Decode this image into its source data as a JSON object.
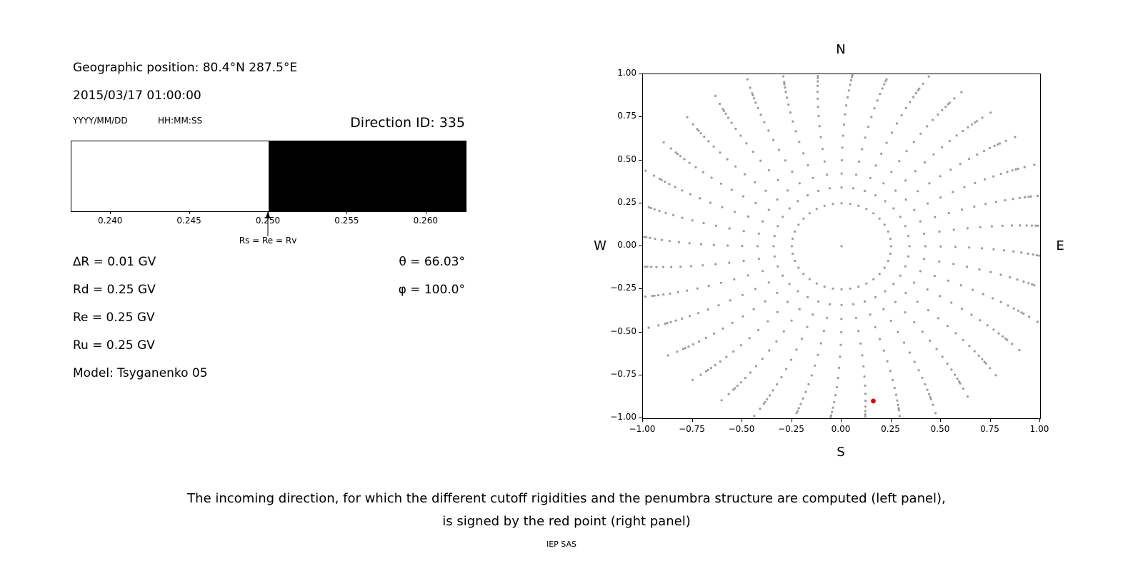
{
  "left_panel": {
    "geo_position": "Geographic position: 80.4°N 287.5°E",
    "datetime": "2015/03/17 01:00:00",
    "date_format_label": "YYYY/MM/DD",
    "time_format_label": "HH:MM:SS",
    "direction_id_label": "Direction ID: 335",
    "params": {
      "delta_r": "∆R = 0.01 GV",
      "rd": "Rd = 0.25 GV",
      "re": "Re = 0.25 GV",
      "ru": "Ru = 0.25 GV",
      "model": "Model: Tsyganenko 05",
      "theta": "θ = 66.03°",
      "phi": "φ = 100.0°"
    }
  },
  "right_panel": {
    "compass": {
      "north": "N",
      "south": "S",
      "east": "E",
      "west": "W"
    }
  },
  "caption": {
    "line1": "The incoming direction, for which the different cutoff rigidities and the penumbra structure are computed (left panel),",
    "line2": "is signed by the red point (right panel)",
    "credit": "IEP SAS"
  },
  "chart_data": [
    {
      "type": "bar",
      "name": "penumbra-structure",
      "x_range": [
        0.2375,
        0.2625
      ],
      "x_tick_values": [
        0.24,
        0.245,
        0.25,
        0.255,
        0.26
      ],
      "x_tick_labels": [
        "0.240",
        "0.245",
        "0.250",
        "0.255",
        "0.260"
      ],
      "segments": [
        {
          "from": 0.2375,
          "to": 0.25,
          "state": "allowed",
          "color": "#ffffff"
        },
        {
          "from": 0.25,
          "to": 0.2625,
          "state": "forbidden",
          "color": "#000000"
        }
      ],
      "annotation": {
        "x": 0.25,
        "label": "Rs = Re = Rv"
      }
    },
    {
      "type": "scatter",
      "name": "incoming-direction-sky-map",
      "xlim": [
        -1,
        1
      ],
      "ylim": [
        -1,
        1
      ],
      "x_tick_values": [
        -1,
        -0.75,
        -0.5,
        -0.25,
        0,
        0.25,
        0.5,
        0.75,
        1
      ],
      "x_tick_labels": [
        "−1.00",
        "−0.75",
        "−0.50",
        "−0.25",
        "0.00",
        "0.25",
        "0.50",
        "0.75",
        "1.00"
      ],
      "y_tick_values": [
        1,
        0.75,
        0.5,
        0.25,
        0,
        -0.25,
        -0.5,
        -0.75,
        -1
      ],
      "y_tick_labels": [
        "1.00",
        "0.75",
        "0.50",
        "0.25",
        "0.00",
        "−0.25",
        "−0.50",
        "−0.75",
        "−1.00"
      ],
      "dot_color": "#9c9c9c",
      "direction_grid": {
        "center_point": [
          0,
          0
        ],
        "ring": {
          "radius": 0.25,
          "count": 36
        },
        "azimuth_step_deg": 10,
        "spoke": {
          "zenith_start_deg": 20,
          "zenith_end_deg": 85,
          "zenith_step_deg": 5,
          "radius_rule": "sin(zenith)",
          "tip_extension_radii": [
            1.03,
            1.08
          ],
          "twist_deg_at_tip": 4
        }
      },
      "highlight_point": {
        "x": 0.16,
        "y": -0.9,
        "color": "#dd0000"
      }
    }
  ]
}
